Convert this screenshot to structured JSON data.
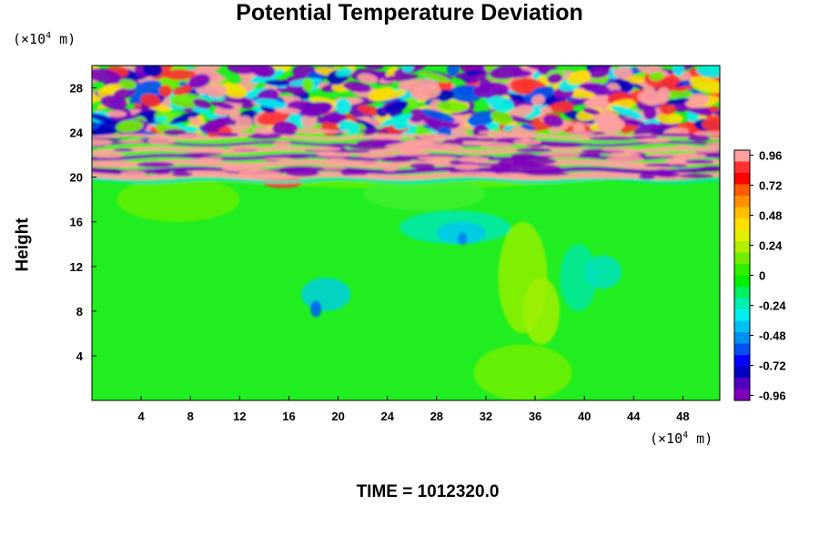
{
  "chart_data": {
    "type": "heatmap",
    "title": "Potential Temperature Deviation",
    "ylabel": "Height",
    "xlabel": "",
    "x_unit": {
      "prefix": "(×10",
      "exp": "4",
      "suffix": " m)"
    },
    "y_unit": {
      "prefix": "(×10",
      "exp": "4",
      "suffix": " m)"
    },
    "footer": "TIME = 1012320.0",
    "xlim": [
      0,
      51
    ],
    "ylim": [
      0,
      30
    ],
    "x_ticks": [
      "4",
      "8",
      "12",
      "16",
      "20",
      "24",
      "28",
      "32",
      "36",
      "40",
      "44",
      "48"
    ],
    "y_ticks": [
      "4",
      "8",
      "12",
      "16",
      "20",
      "24",
      "28"
    ],
    "colorbar": {
      "range": [
        -1.0,
        1.0
      ],
      "labels": [
        "0.96",
        "0.72",
        "0.48",
        "0.24",
        "0",
        "-0.24",
        "-0.48",
        "-0.72",
        "-0.96"
      ],
      "colors": [
        "#ffa0a0",
        "#ff3030",
        "#ff0000",
        "#ff5a00",
        "#ff9000",
        "#ffc000",
        "#ffe000",
        "#e0f000",
        "#b0f000",
        "#70f000",
        "#30f000",
        "#00f000",
        "#00f060",
        "#00f0b0",
        "#00f0f0",
        "#00c0f0",
        "#0090f0",
        "#0050f0",
        "#0000ff",
        "#0000c0",
        "#5000c0",
        "#8000c0"
      ]
    },
    "regions": [
      {
        "name": "upper layer",
        "y_range": [
          24,
          30
        ],
        "values": "-0.96 to 0.96 (strong oscillations)"
      },
      {
        "name": "inversion band",
        "y_range": [
          19.5,
          24
        ],
        "values": "-0.96 to 0.96 (alternating stripes)"
      },
      {
        "name": "lower domain",
        "y_range": [
          0,
          19.5
        ],
        "values": "about -0.3 to 0.2"
      }
    ]
  }
}
